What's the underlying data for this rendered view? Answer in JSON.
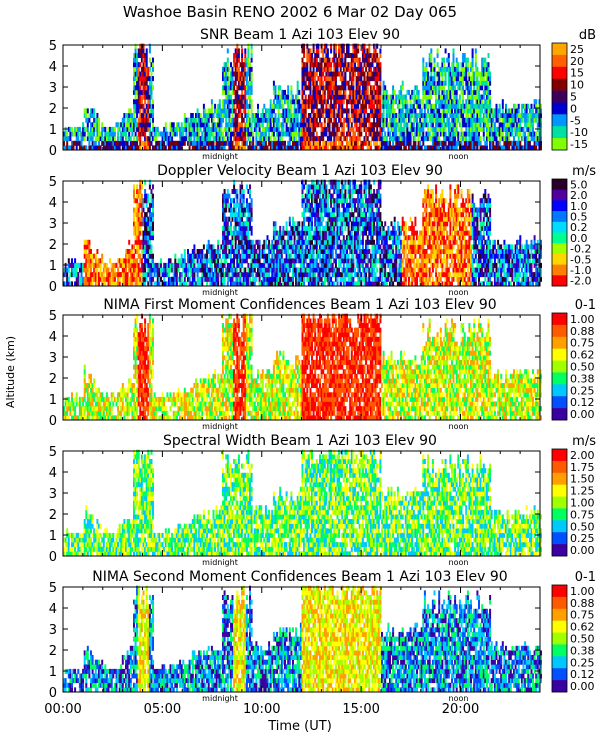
{
  "figure": {
    "title": "Washoe Basin RENO 2002    6 Mar 02 Day 065",
    "ylabel": "Altitude (km)",
    "xlabel": "Time (UT)",
    "x_ticks": [
      "00:00",
      "05:00",
      "10:00",
      "15:00",
      "20:00"
    ],
    "x_markers": [
      "midnight",
      "noon"
    ]
  },
  "chart_data": [
    {
      "type": "heatmap",
      "title": "SNR Beam 1 Azi 103 Elev 90",
      "unit": "dB",
      "ylim": [
        0,
        5
      ],
      "y_ticks": [
        "0",
        "1",
        "2",
        "3",
        "4",
        "5"
      ],
      "xlim_hours": [
        0,
        24
      ],
      "colorbar": {
        "labels": [
          "25",
          "20",
          "15",
          "10",
          "5",
          "0",
          "-5",
          "-10",
          "-15"
        ],
        "colors": [
          "#ffa500",
          "#ff6000",
          "#ff0000",
          "#800000",
          "#3c005a",
          "#0000cd",
          "#0096ff",
          "#00e0a0",
          "#80ff00"
        ]
      }
    },
    {
      "type": "heatmap",
      "title": "Doppler Velocity Beam 1 Azi 103 Elev 90",
      "unit": "m/s",
      "ylim": [
        0,
        5
      ],
      "y_ticks": [
        "0",
        "1",
        "2",
        "3",
        "4",
        "5"
      ],
      "xlim_hours": [
        0,
        24
      ],
      "colorbar": {
        "labels": [
          "5.0",
          "2.0",
          "1.0",
          "0.5",
          "0.2",
          "0.0",
          "-0.2",
          "-0.5",
          "-1.0",
          "-2.0"
        ],
        "colors": [
          "#280028",
          "#5000a0",
          "#0000ff",
          "#0078ff",
          "#00dcff",
          "#00ff90",
          "#a0ff00",
          "#ffd700",
          "#ff8000",
          "#ff0000"
        ]
      }
    },
    {
      "type": "heatmap",
      "title": "NIMA First Moment Confidences Beam 1 Azi 103 Elev 90",
      "unit": "0-1",
      "ylim": [
        0,
        5
      ],
      "y_ticks": [
        "0",
        "1",
        "2",
        "3",
        "4",
        "5"
      ],
      "xlim_hours": [
        0,
        24
      ],
      "colorbar": {
        "labels": [
          "1.00",
          "0.88",
          "0.75",
          "0.62",
          "0.50",
          "0.38",
          "0.25",
          "0.12",
          "0.00"
        ],
        "colors": [
          "#ff0000",
          "#ff5a00",
          "#ffa000",
          "#ffff00",
          "#a0ff00",
          "#00ff60",
          "#00c8ff",
          "#0050ff",
          "#3c00a0"
        ]
      }
    },
    {
      "type": "heatmap",
      "title": "Spectral Width Beam 1 Azi 103 Elev 90",
      "unit": "m/s",
      "ylim": [
        0,
        5
      ],
      "y_ticks": [
        "0",
        "1",
        "2",
        "3",
        "4",
        "5"
      ],
      "xlim_hours": [
        0,
        24
      ],
      "colorbar": {
        "labels": [
          "2.00",
          "1.75",
          "1.50",
          "1.25",
          "1.00",
          "0.75",
          "0.50",
          "0.25",
          "0.00"
        ],
        "colors": [
          "#ff0000",
          "#ff5a00",
          "#ffa000",
          "#ffff00",
          "#a0ff00",
          "#00ff60",
          "#00c8ff",
          "#0050ff",
          "#3c00a0"
        ]
      }
    },
    {
      "type": "heatmap",
      "title": "NIMA Second Moment Confidences Beam 1 Azi 103 Elev 90",
      "unit": "0-1",
      "ylim": [
        0,
        5
      ],
      "y_ticks": [
        "0",
        "1",
        "2",
        "3",
        "4",
        "5"
      ],
      "xlim_hours": [
        0,
        24
      ],
      "colorbar": {
        "labels": [
          "1.00",
          "0.88",
          "0.75",
          "0.62",
          "0.50",
          "0.38",
          "0.25",
          "0.12",
          "0.00"
        ],
        "colors": [
          "#ff0000",
          "#ff5a00",
          "#ffa000",
          "#ffff00",
          "#a0ff00",
          "#00ff60",
          "#00c8ff",
          "#0050ff",
          "#3c00a0"
        ]
      }
    }
  ]
}
